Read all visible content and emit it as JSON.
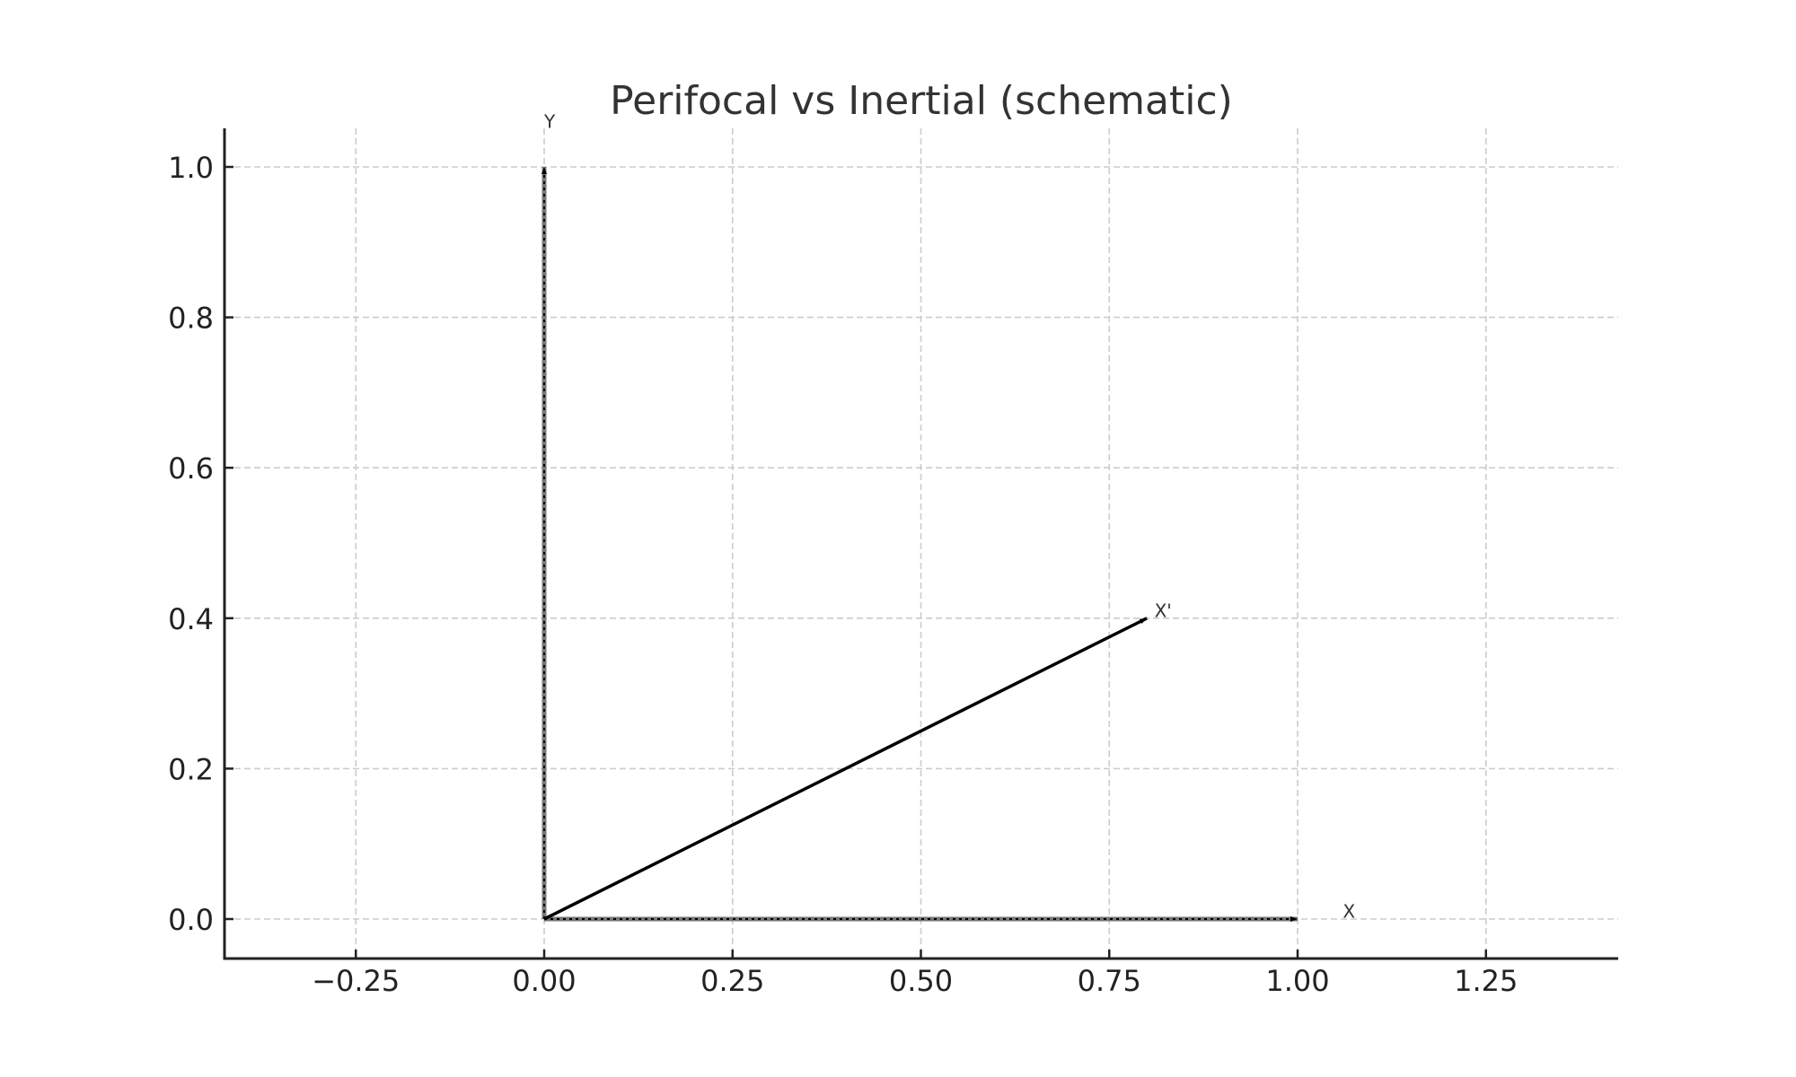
{
  "chart_data": {
    "type": "line",
    "title": "Perifocal vs Inertial (schematic)",
    "xlabel": "",
    "ylabel": "",
    "xlim": [
      -0.43,
      1.43
    ],
    "ylim": [
      -0.05,
      1.05
    ],
    "grid": true,
    "legend": null,
    "x_ticks": [
      -0.25,
      0.0,
      0.25,
      0.5,
      0.75,
      1.0,
      1.25
    ],
    "x_tick_labels": [
      "−0.25",
      "0.00",
      "0.25",
      "0.50",
      "0.75",
      "1.00",
      "1.25"
    ],
    "y_ticks": [
      0.0,
      0.2,
      0.4,
      0.6,
      0.8,
      1.0
    ],
    "y_tick_labels": [
      "0.0",
      "0.2",
      "0.4",
      "0.6",
      "0.8",
      "1.0"
    ],
    "series": [
      {
        "name": "X",
        "type": "vector",
        "from": [
          0,
          0
        ],
        "to": [
          1.0,
          0.0
        ],
        "label": "X",
        "label_pos": [
          1.06,
          0.01
        ],
        "style": "dotted-gray"
      },
      {
        "name": "Y",
        "type": "vector",
        "from": [
          0,
          0
        ],
        "to": [
          0.0,
          1.0
        ],
        "label": "Y",
        "label_pos": [
          0.0,
          1.06
        ],
        "style": "dotted-gray"
      },
      {
        "name": "X'",
        "type": "vector",
        "from": [
          0,
          0
        ],
        "to": [
          0.8,
          0.4
        ],
        "label": "X'",
        "label_pos": [
          0.81,
          0.41
        ],
        "style": "solid-black"
      }
    ]
  },
  "colors": {
    "background": "#ffffff",
    "grid": "#cccccc",
    "axis": "#222222",
    "vector": "#000000",
    "vector_under": "#777777",
    "title": "#333333"
  }
}
